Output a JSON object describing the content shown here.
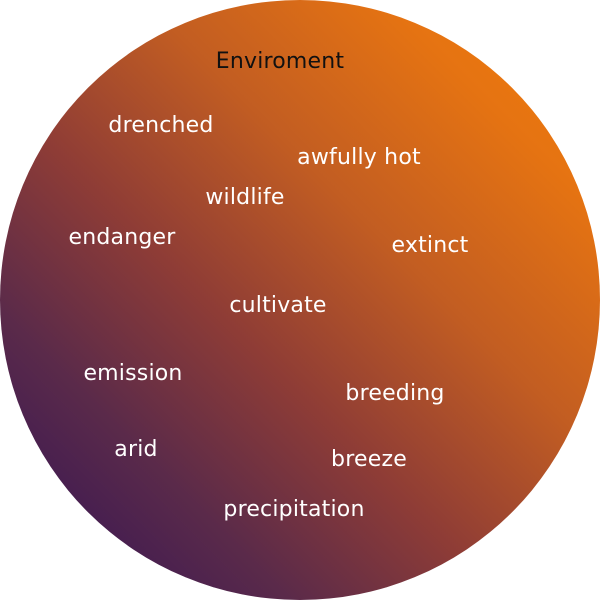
{
  "title": "Enviroment",
  "words": {
    "drenched": "drenched",
    "awfully_hot": "awfully hot",
    "wildlife": "wildlife",
    "endanger": "endanger",
    "extinct": "extinct",
    "cultivate": "cultivate",
    "emission": "emission",
    "breeding": "breeding",
    "arid": "arid",
    "breeze": "breeze",
    "precipitation": "precipitation"
  },
  "colors": {
    "gradient_top_right": "#f47e08",
    "gradient_bottom_left": "#2c0f58",
    "title_text": "#111111",
    "word_text": "#ffffff"
  }
}
